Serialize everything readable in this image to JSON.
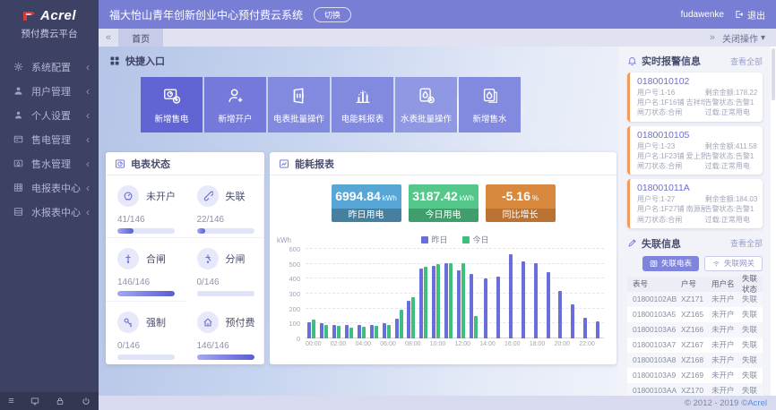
{
  "brand": {
    "name": "Acrel",
    "subtitle": "预付费云平台"
  },
  "header": {
    "title": "福大怡山青年创新创业中心预付费云系统",
    "switch_label": "切换",
    "username": "fudawenke",
    "logout_label": "退出"
  },
  "tabbar": {
    "active_tab": "首页",
    "close_menu_label": "关闭操作"
  },
  "sidebar": {
    "items": [
      {
        "icon": "gear-icon",
        "label": "系统配置"
      },
      {
        "icon": "users-icon",
        "label": "用户管理"
      },
      {
        "icon": "person-icon",
        "label": "个人设置"
      },
      {
        "icon": "sell-elec-icon",
        "label": "售电管理"
      },
      {
        "icon": "sell-water-icon",
        "label": "售水管理"
      },
      {
        "icon": "elec-report-icon",
        "label": "电报表中心"
      },
      {
        "icon": "water-report-icon",
        "label": "水报表中心"
      }
    ]
  },
  "quick_entry": {
    "title": "快捷入口",
    "buttons": [
      {
        "icon": "add-elec-sale-icon",
        "label": "新增售电",
        "color": "#6165d3"
      },
      {
        "icon": "add-account-icon",
        "label": "新增开户",
        "color": "#757ada"
      },
      {
        "icon": "meter-batch-icon",
        "label": "电表批量操作",
        "color": "#828ae0"
      },
      {
        "icon": "energy-report-icon",
        "label": "电能耗报表",
        "color": "#828ae0"
      },
      {
        "icon": "water-batch-icon",
        "label": "水表批量操作",
        "color": "#9098e4"
      },
      {
        "icon": "add-water-sale-icon",
        "label": "新增售水",
        "color": "#828ae0"
      }
    ]
  },
  "meter_status": {
    "title": "电表状态",
    "tiles": [
      {
        "icon": "meter-icon",
        "label": "未开户",
        "count": "41/146"
      },
      {
        "icon": "offline-icon",
        "label": "失联",
        "count": "22/146"
      },
      {
        "icon": "switch-on-icon",
        "label": "合闸",
        "count": "146/146"
      },
      {
        "icon": "switch-off-icon",
        "label": "分闸",
        "count": "0/146"
      },
      {
        "icon": "key-icon",
        "label": "强制",
        "count": "0/146"
      },
      {
        "icon": "prepaid-icon",
        "label": "预付费",
        "count": "146/146"
      }
    ]
  },
  "energy": {
    "title": "能耗报表",
    "stats": [
      {
        "value": "6994.84",
        "unit": "kWh",
        "label": "昨日用电",
        "color": "#58a6d6",
        "strip": "#46809e"
      },
      {
        "value": "3187.42",
        "unit": "kWh",
        "label": "今日用电",
        "color": "#55c78a",
        "strip": "#3f9e6b"
      },
      {
        "value": "-5.16",
        "unit": "%",
        "label": "同比增长",
        "color": "#d8893d",
        "strip": "#bb7334"
      }
    ]
  },
  "chart_data": {
    "type": "bar",
    "title": "能耗报表",
    "ylabel": "kWh",
    "ylim": [
      0,
      600
    ],
    "ytick_interval": 100,
    "grid": "dashed-horizontal",
    "legend_position": "top-center",
    "xticks_every": 2,
    "x": [
      "00:00",
      "01:00",
      "02:00",
      "03:00",
      "04:00",
      "05:00",
      "06:00",
      "07:00",
      "08:00",
      "09:00",
      "10:00",
      "11:00",
      "12:00",
      "13:00",
      "14:00",
      "15:00",
      "16:00",
      "17:00",
      "18:00",
      "19:00",
      "20:00",
      "21:00",
      "22:00",
      "23:00"
    ],
    "series": [
      {
        "name": "昨日",
        "color": "#6a6ed8",
        "values": [
          110,
          105,
          88,
          88,
          88,
          90,
          100,
          130,
          255,
          468,
          487,
          503,
          455,
          432,
          405,
          412,
          565,
          515,
          505,
          447,
          318,
          228,
          140,
          115
        ]
      },
      {
        "name": "今日",
        "color": "#3fbe7d",
        "values": [
          125,
          90,
          82,
          75,
          78,
          82,
          88,
          190,
          278,
          483,
          497,
          503,
          505,
          150,
          null,
          null,
          null,
          null,
          null,
          null,
          null,
          null,
          null,
          null
        ]
      }
    ]
  },
  "alarms": {
    "title": "实时报警信息",
    "view_all": "查看全部",
    "cards": [
      {
        "id": "0180010102",
        "user_no": "用户号:1-16",
        "user_name": "用户名:1F16铺 吉祥培训",
        "switch": "闸刀状态:合闸",
        "balance": "剩余金额:178.22",
        "alarm": "告警状态:告警1",
        "overload": "过载:正常用电"
      },
      {
        "id": "0180010105",
        "user_no": "用户号:1-23",
        "user_name": "用户名:1F23铺 爱上我的煎",
        "switch": "闸刀状态:合闸",
        "balance": "剩余金额:411.58",
        "alarm": "告警状态:告警1",
        "overload": "过载:正常用电"
      },
      {
        "id": "018001011A",
        "user_no": "用户号:1-27",
        "user_name": "用户名:1F27铺 南源屋",
        "switch": "闸刀状态:合闸",
        "balance": "剩余金额:184.03",
        "alarm": "告警状态:告警1",
        "overload": "过载:正常用电"
      }
    ]
  },
  "offline": {
    "title": "失联信息",
    "view_all": "查看全部",
    "btn_meter": "失联电表",
    "btn_gateway": "失联网关",
    "table": {
      "headers": [
        "表号",
        "户号",
        "用户名",
        "失联状态"
      ],
      "rows": [
        [
          "01800102AB",
          "XZ171",
          "未开户",
          "失联"
        ],
        [
          "01800103A5",
          "XZ165",
          "未开户",
          "失联"
        ],
        [
          "01800103A6",
          "XZ166",
          "未开户",
          "失联"
        ],
        [
          "01800103A7",
          "XZ167",
          "未开户",
          "失联"
        ],
        [
          "01800103A8",
          "XZ168",
          "未开户",
          "失联"
        ],
        [
          "01800103A9",
          "XZ169",
          "未开户",
          "失联"
        ],
        [
          "01800103AA",
          "XZ170",
          "未开户",
          "失联"
        ]
      ]
    }
  },
  "footer": {
    "copyright": "© 2012 - 2019 ",
    "brand_link": "©Acrel"
  }
}
